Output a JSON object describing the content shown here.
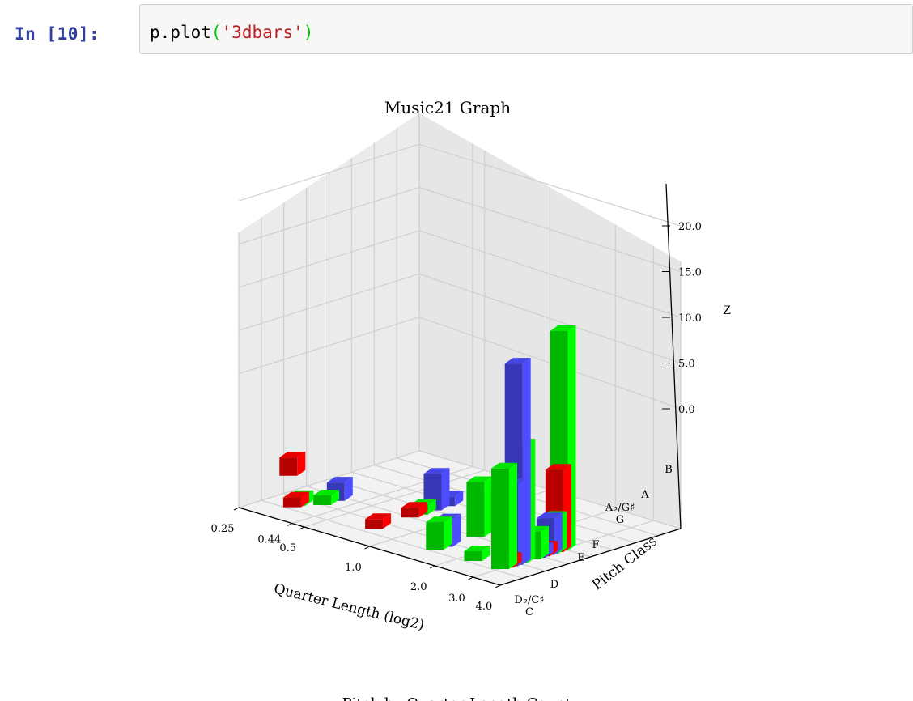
{
  "cell": {
    "prompt": "In [10]:",
    "code": {
      "object": "p",
      "method": ".plot",
      "open": "(",
      "arg": "'3dbars'",
      "close": ")"
    }
  },
  "chart_data": {
    "type": "bar3d",
    "title": "Music21 Graph",
    "caption": "Pitch by Quarter Length Count",
    "xlabel": "Quarter Length (log2)",
    "ylabel": "Pitch Class",
    "zlabel": "Z",
    "x_ticks": [
      "0.25",
      "0.44",
      "0.5",
      "1.0",
      "2.0",
      "3.0",
      "4.0"
    ],
    "y_ticks": [
      "C",
      "D♭/C♯",
      "D",
      "E",
      "F",
      "G",
      "A♭/G♯",
      "A",
      "B"
    ],
    "z_ticks": [
      "0.0",
      "5.0",
      "10.0",
      "15.0",
      "20.0"
    ],
    "zlim": [
      0,
      24
    ],
    "colors": {
      "red": "#ff0000",
      "green": "#00ff00",
      "blue": "#4d4dff"
    },
    "bars": [
      {
        "x": 0.25,
        "y": 11,
        "z": 2,
        "color": "red"
      },
      {
        "x": 0.5,
        "y": 7,
        "z": 2,
        "color": "blue"
      },
      {
        "x": 0.5,
        "y": 4,
        "z": 1,
        "color": "green"
      },
      {
        "x": 0.44,
        "y": 1,
        "z": 1,
        "color": "green"
      },
      {
        "x": 0.44,
        "y": 0,
        "z": 1,
        "color": "red"
      },
      {
        "x": 1.0,
        "y": 9,
        "z": 1,
        "color": "red"
      },
      {
        "x": 1.0,
        "y": 1,
        "z": 1,
        "color": "red"
      },
      {
        "x": 1.0,
        "y": 11,
        "z": 1,
        "color": "green"
      },
      {
        "x": 1.0,
        "y": 14,
        "z": 4,
        "color": "blue"
      },
      {
        "x": 1.0,
        "y": 17,
        "z": 1,
        "color": "blue"
      },
      {
        "x": 2.0,
        "y": 9,
        "z": 6,
        "color": "green"
      },
      {
        "x": 2.0,
        "y": 12,
        "z": 4,
        "color": "blue"
      },
      {
        "x": 2.0,
        "y": 13,
        "z": 1,
        "color": "red"
      },
      {
        "x": 2.0,
        "y": 2,
        "z": 3,
        "color": "blue"
      },
      {
        "x": 2.0,
        "y": 0,
        "z": 3,
        "color": "green"
      },
      {
        "x": 3.0,
        "y": 6,
        "z": 7,
        "color": "red"
      },
      {
        "x": 3.0,
        "y": 0,
        "z": 1,
        "color": "green"
      },
      {
        "x": 4.0,
        "y": 7,
        "z": 3,
        "color": "green"
      },
      {
        "x": 4.0,
        "y": 2,
        "z": 9,
        "color": "blue"
      },
      {
        "x": 4.0,
        "y": 1,
        "z": 1,
        "color": "red"
      },
      {
        "x": 4.0,
        "y": 0,
        "z": 11,
        "color": "green"
      },
      {
        "x": 4.0,
        "y": 10,
        "z": 4,
        "color": "blue"
      },
      {
        "x": 4.0,
        "y": 11,
        "z": 4,
        "color": "green"
      },
      {
        "x": 4.0,
        "y": 12,
        "z": 2,
        "color": "red"
      },
      {
        "x": 4.0,
        "y": 4,
        "z": 13,
        "color": "green"
      },
      {
        "x": 4.0,
        "y": 3,
        "z": 22,
        "color": "blue"
      },
      {
        "x": 4.0,
        "y": 8,
        "z": 1,
        "color": "blue"
      },
      {
        "x": 4.0,
        "y": 9,
        "z": 1,
        "color": "red"
      },
      {
        "x": 4.0,
        "y": 12,
        "z": 9,
        "color": "red"
      },
      {
        "x": 4.0,
        "y": 13,
        "z": 24,
        "color": "green"
      }
    ]
  }
}
